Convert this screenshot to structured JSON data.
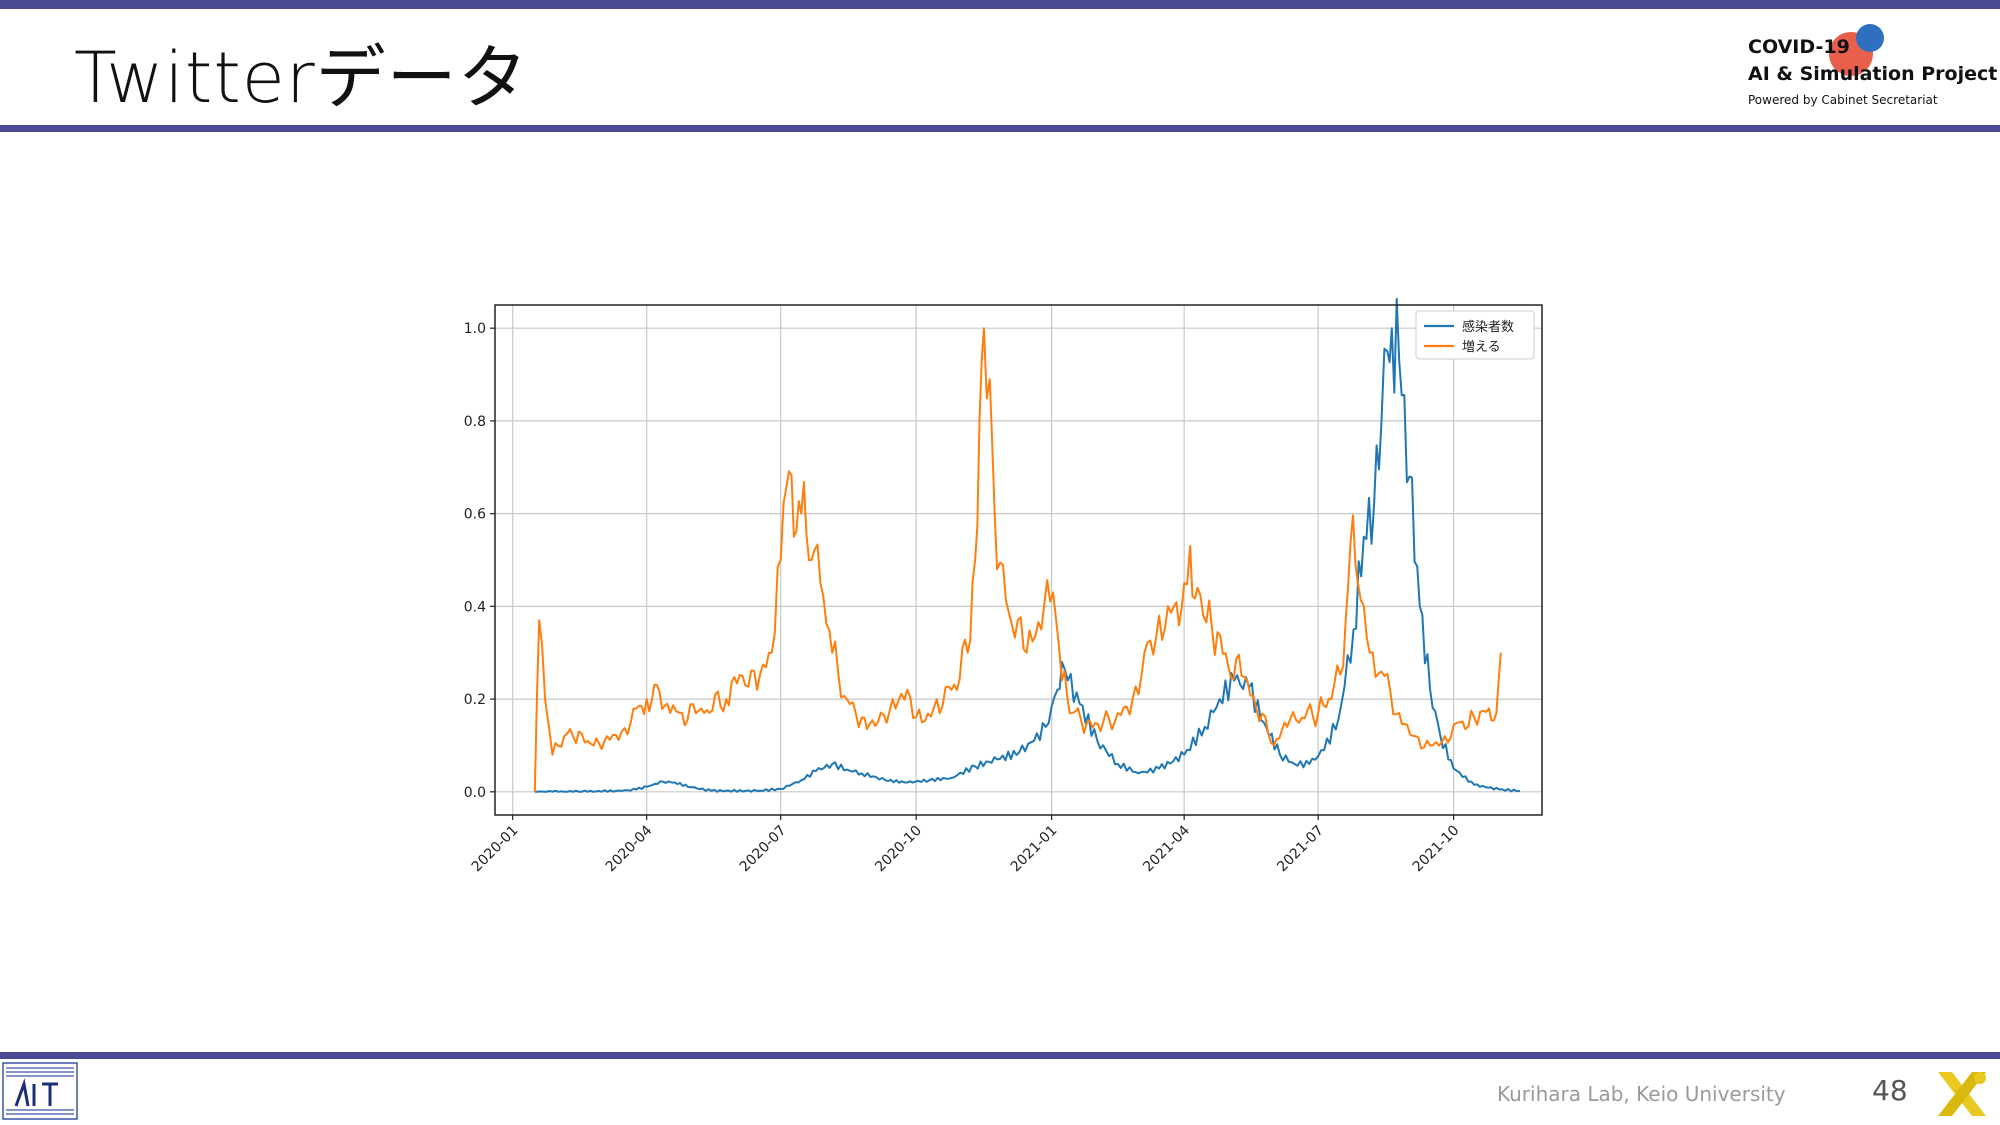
{
  "slide": {
    "title": "Twitterデータ",
    "page_number": "48",
    "footer_text": "Kurihara Lab, Keio University",
    "accent_color": "#4b4a94"
  },
  "logo": {
    "line1": "COVID-19",
    "line2": "AI & Simulation Project",
    "line3": "Powered by Cabinet Secretariat",
    "dot_colors": [
      "#e8604c",
      "#2f6fc0"
    ]
  },
  "footer_icons": [
    "lab-logo-icon",
    "x-mark-icon"
  ],
  "chart_data": {
    "type": "line",
    "title": "",
    "xlabel": "",
    "ylabel": "",
    "ylim": [
      -0.05,
      1.05
    ],
    "yticks": [
      0.0,
      0.2,
      0.4,
      0.6,
      0.8,
      1.0
    ],
    "ytick_labels": [
      "0.0",
      "0.2",
      "0.4",
      "0.6",
      "0.8",
      "1.0"
    ],
    "xlim": [
      "2019-12-20",
      "2021-11-30"
    ],
    "xticks": [
      "2020-01-01",
      "2020-04-01",
      "2020-07-01",
      "2020-10-01",
      "2021-01-01",
      "2021-04-01",
      "2021-07-01",
      "2021-10-01"
    ],
    "xtick_labels": [
      "2020-01",
      "2020-04",
      "2020-07",
      "2020-10",
      "2021-01",
      "2021-04",
      "2021-07",
      "2021-10"
    ],
    "grid": true,
    "legend_position": "top-right",
    "series": [
      {
        "name": "感染者数",
        "color": "#1f77b4",
        "points": [
          [
            "2020-01-16",
            0.0
          ],
          [
            "2020-02-15",
            0.0
          ],
          [
            "2020-03-15",
            0.002
          ],
          [
            "2020-03-25",
            0.005
          ],
          [
            "2020-04-05",
            0.015
          ],
          [
            "2020-04-12",
            0.022
          ],
          [
            "2020-04-20",
            0.02
          ],
          [
            "2020-05-01",
            0.01
          ],
          [
            "2020-05-15",
            0.002
          ],
          [
            "2020-06-15",
            0.002
          ],
          [
            "2020-07-01",
            0.006
          ],
          [
            "2020-07-15",
            0.025
          ],
          [
            "2020-07-25",
            0.045
          ],
          [
            "2020-08-05",
            0.06
          ],
          [
            "2020-08-15",
            0.048
          ],
          [
            "2020-08-25",
            0.04
          ],
          [
            "2020-09-10",
            0.025
          ],
          [
            "2020-09-25",
            0.02
          ],
          [
            "2020-10-10",
            0.025
          ],
          [
            "2020-10-25",
            0.03
          ],
          [
            "2020-11-10",
            0.055
          ],
          [
            "2020-11-25",
            0.07
          ],
          [
            "2020-12-10",
            0.085
          ],
          [
            "2020-12-20",
            0.11
          ],
          [
            "2020-12-28",
            0.14
          ],
          [
            "2021-01-05",
            0.22
          ],
          [
            "2021-01-08",
            0.28
          ],
          [
            "2021-01-12",
            0.24
          ],
          [
            "2021-01-20",
            0.19
          ],
          [
            "2021-02-01",
            0.11
          ],
          [
            "2021-02-15",
            0.06
          ],
          [
            "2021-03-01",
            0.04
          ],
          [
            "2021-03-15",
            0.05
          ],
          [
            "2021-04-01",
            0.08
          ],
          [
            "2021-04-15",
            0.14
          ],
          [
            "2021-04-25",
            0.2
          ],
          [
            "2021-05-05",
            0.24
          ],
          [
            "2021-05-15",
            0.225
          ],
          [
            "2021-05-25",
            0.15
          ],
          [
            "2021-06-05",
            0.08
          ],
          [
            "2021-06-15",
            0.06
          ],
          [
            "2021-06-25",
            0.06
          ],
          [
            "2021-07-05",
            0.09
          ],
          [
            "2021-07-15",
            0.16
          ],
          [
            "2021-07-25",
            0.35
          ],
          [
            "2021-08-01",
            0.55
          ],
          [
            "2021-08-08",
            0.62
          ],
          [
            "2021-08-13",
            0.8
          ],
          [
            "2021-08-17",
            0.95
          ],
          [
            "2021-08-20",
            1.0
          ],
          [
            "2021-08-25",
            0.93
          ],
          [
            "2021-09-01",
            0.68
          ],
          [
            "2021-09-08",
            0.4
          ],
          [
            "2021-09-15",
            0.22
          ],
          [
            "2021-09-22",
            0.12
          ],
          [
            "2021-10-01",
            0.05
          ],
          [
            "2021-10-15",
            0.015
          ],
          [
            "2021-11-01",
            0.005
          ],
          [
            "2021-11-15",
            0.002
          ]
        ]
      },
      {
        "name": "増える",
        "color": "#ff7f0e",
        "points": [
          [
            "2020-01-16",
            0.0
          ],
          [
            "2020-01-19",
            0.37
          ],
          [
            "2020-01-23",
            0.2
          ],
          [
            "2020-01-28",
            0.08
          ],
          [
            "2020-02-05",
            0.12
          ],
          [
            "2020-02-15",
            0.13
          ],
          [
            "2020-02-25",
            0.1
          ],
          [
            "2020-03-05",
            0.12
          ],
          [
            "2020-03-15",
            0.13
          ],
          [
            "2020-03-25",
            0.18
          ],
          [
            "2020-04-01",
            0.2
          ],
          [
            "2020-04-08",
            0.23
          ],
          [
            "2020-04-15",
            0.19
          ],
          [
            "2020-04-25",
            0.17
          ],
          [
            "2020-05-10",
            0.17
          ],
          [
            "2020-05-25",
            0.2
          ],
          [
            "2020-06-05",
            0.25
          ],
          [
            "2020-06-15",
            0.22
          ],
          [
            "2020-06-25",
            0.3
          ],
          [
            "2020-07-01",
            0.5
          ],
          [
            "2020-07-05",
            0.66
          ],
          [
            "2020-07-10",
            0.55
          ],
          [
            "2020-07-15",
            0.6
          ],
          [
            "2020-07-22",
            0.5
          ],
          [
            "2020-07-28",
            0.45
          ],
          [
            "2020-08-05",
            0.3
          ],
          [
            "2020-08-15",
            0.2
          ],
          [
            "2020-08-25",
            0.16
          ],
          [
            "2020-09-05",
            0.15
          ],
          [
            "2020-09-15",
            0.2
          ],
          [
            "2020-09-25",
            0.22
          ],
          [
            "2020-10-05",
            0.15
          ],
          [
            "2020-10-15",
            0.2
          ],
          [
            "2020-10-25",
            0.22
          ],
          [
            "2020-11-05",
            0.3
          ],
          [
            "2020-11-10",
            0.5
          ],
          [
            "2020-11-13",
            0.8
          ],
          [
            "2020-11-16",
            1.0
          ],
          [
            "2020-11-20",
            0.89
          ],
          [
            "2020-11-25",
            0.48
          ],
          [
            "2020-12-05",
            0.36
          ],
          [
            "2020-12-15",
            0.3
          ],
          [
            "2020-12-25",
            0.35
          ],
          [
            "2021-01-02",
            0.43
          ],
          [
            "2021-01-08",
            0.24
          ],
          [
            "2021-01-15",
            0.17
          ],
          [
            "2021-01-25",
            0.15
          ],
          [
            "2021-02-05",
            0.15
          ],
          [
            "2021-02-15",
            0.17
          ],
          [
            "2021-02-25",
            0.2
          ],
          [
            "2021-03-05",
            0.3
          ],
          [
            "2021-03-15",
            0.38
          ],
          [
            "2021-03-25",
            0.4
          ],
          [
            "2021-04-01",
            0.45
          ],
          [
            "2021-04-05",
            0.53
          ],
          [
            "2021-04-10",
            0.44
          ],
          [
            "2021-04-20",
            0.35
          ],
          [
            "2021-05-01",
            0.27
          ],
          [
            "2021-05-10",
            0.25
          ],
          [
            "2021-05-20",
            0.18
          ],
          [
            "2021-06-01",
            0.1
          ],
          [
            "2021-06-10",
            0.14
          ],
          [
            "2021-06-20",
            0.16
          ],
          [
            "2021-07-01",
            0.17
          ],
          [
            "2021-07-10",
            0.2
          ],
          [
            "2021-07-18",
            0.27
          ],
          [
            "2021-07-23",
            0.54
          ],
          [
            "2021-07-28",
            0.45
          ],
          [
            "2021-08-05",
            0.3
          ],
          [
            "2021-08-15",
            0.25
          ],
          [
            "2021-08-25",
            0.17
          ],
          [
            "2021-09-05",
            0.12
          ],
          [
            "2021-09-15",
            0.1
          ],
          [
            "2021-09-25",
            0.12
          ],
          [
            "2021-10-05",
            0.15
          ],
          [
            "2021-10-15",
            0.16
          ],
          [
            "2021-10-25",
            0.18
          ],
          [
            "2021-10-30",
            0.17
          ],
          [
            "2021-11-02",
            0.3
          ]
        ]
      }
    ]
  }
}
